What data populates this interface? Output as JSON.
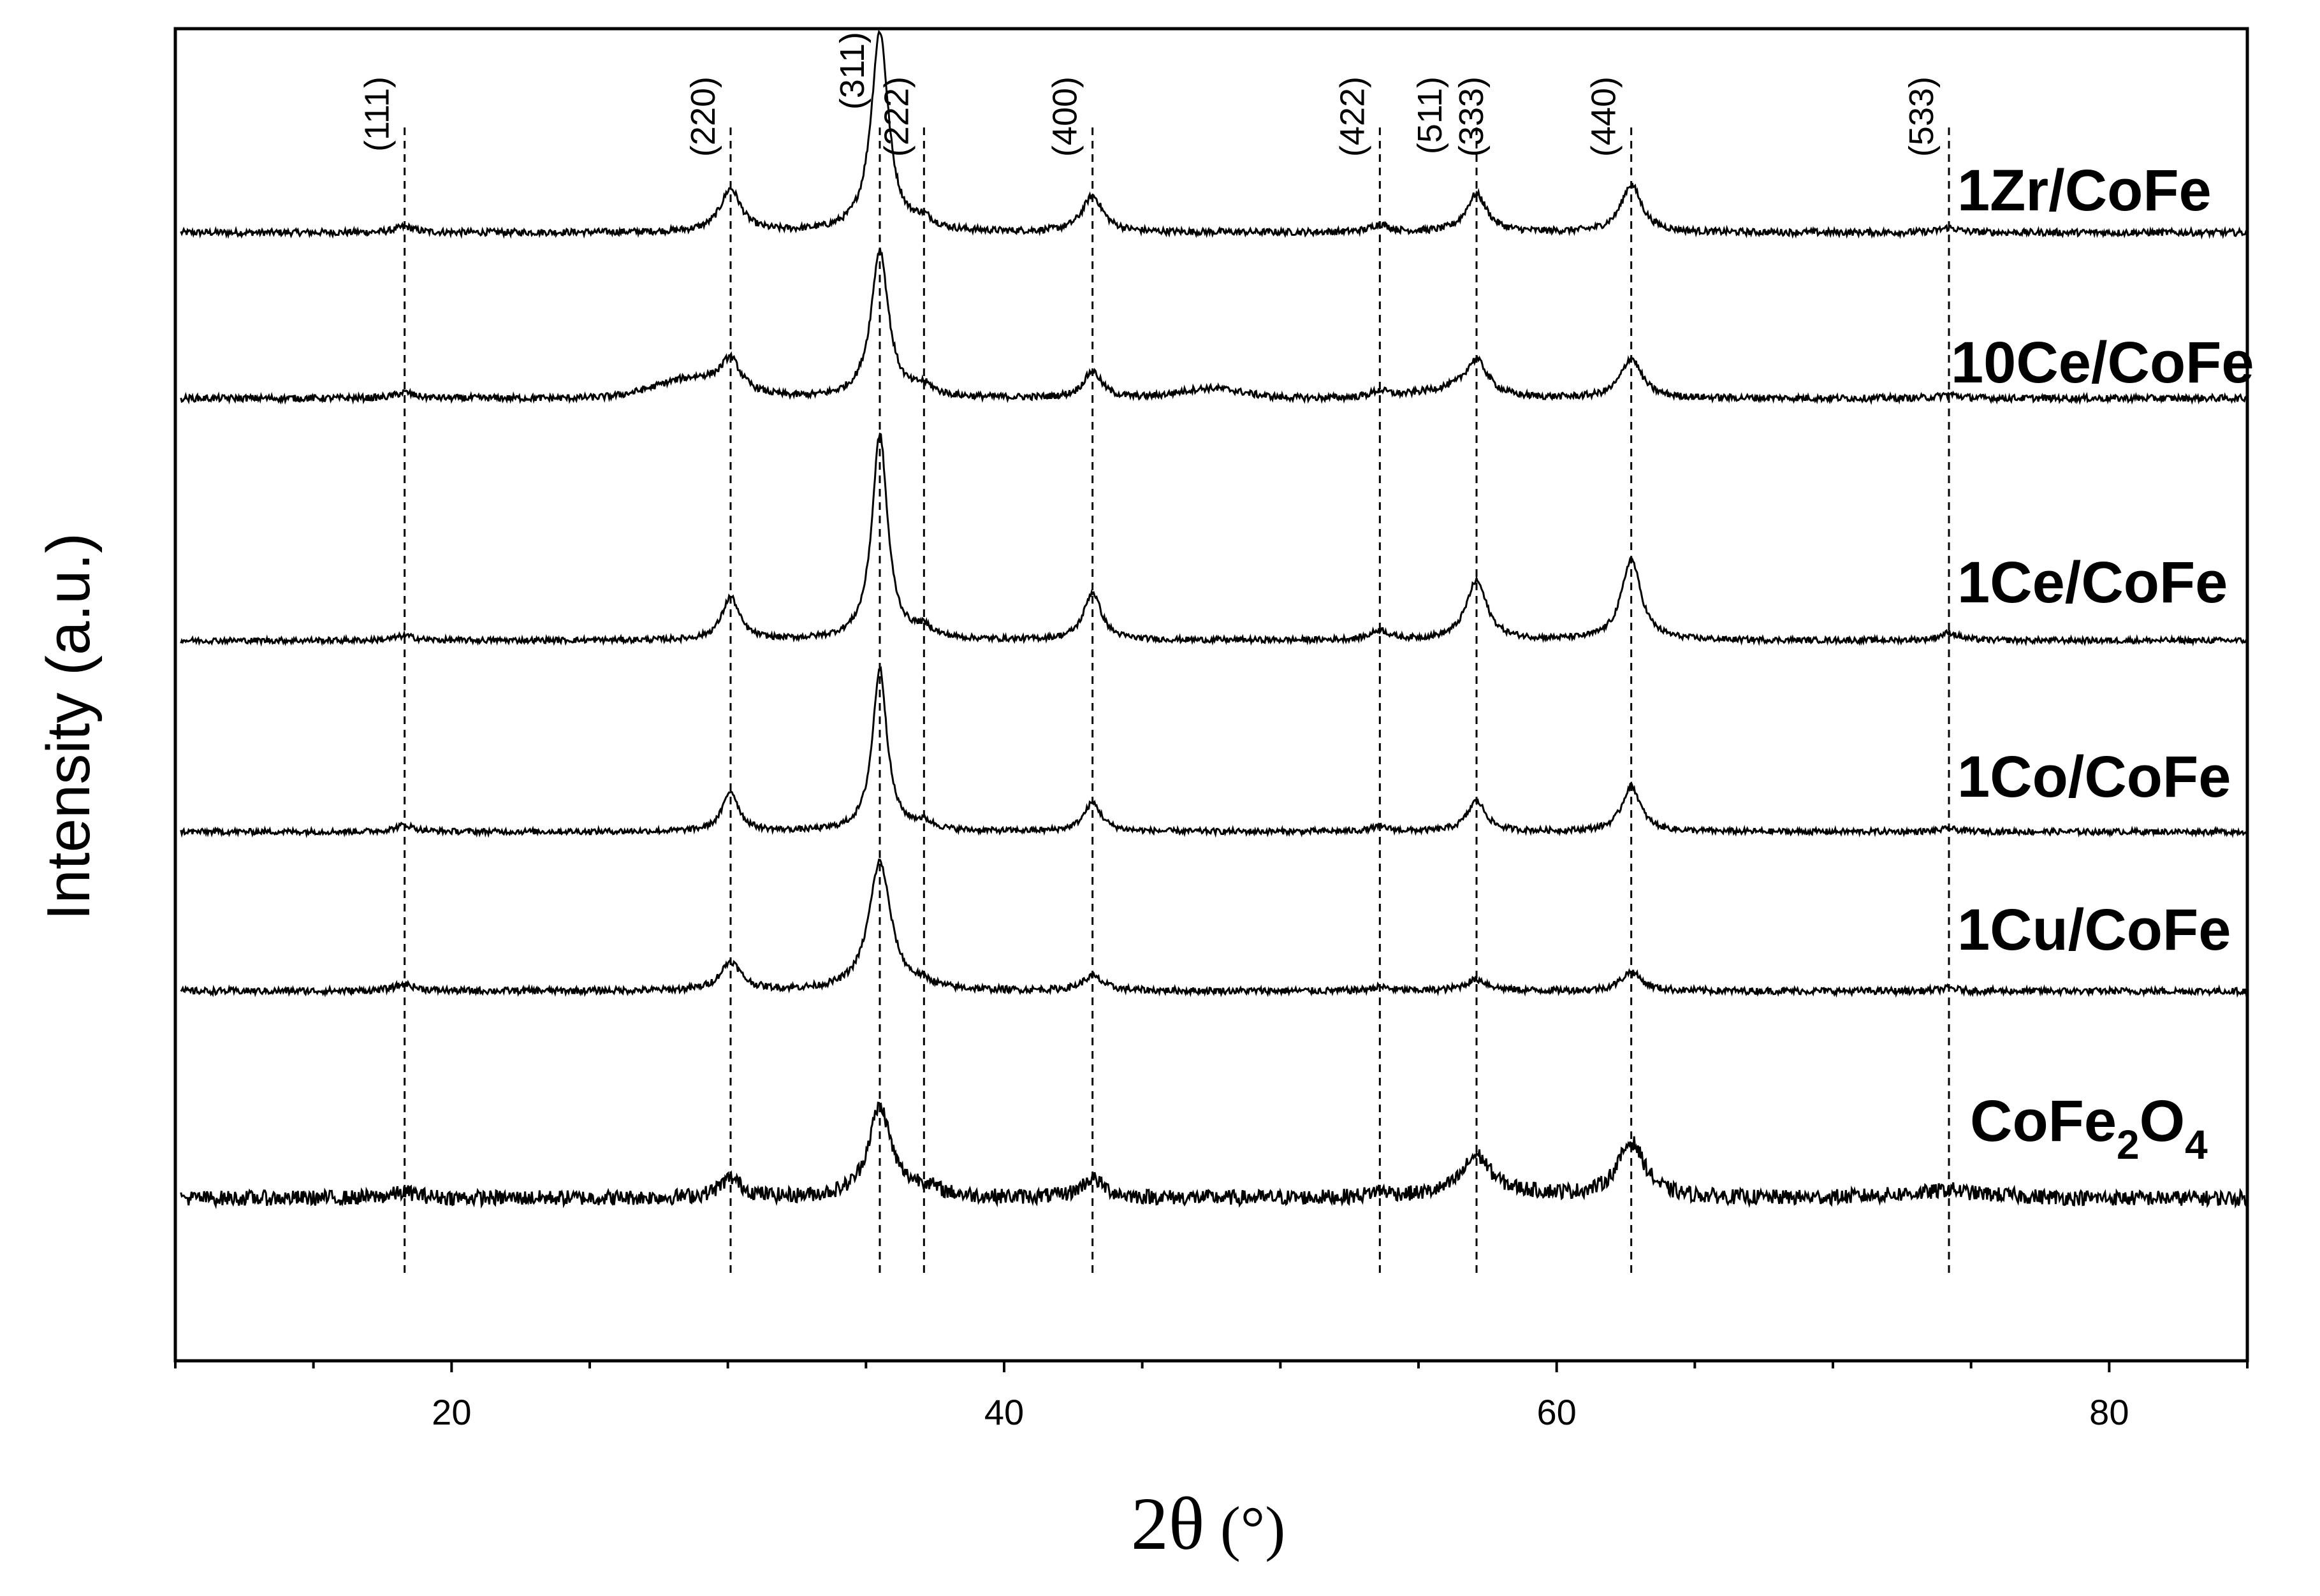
{
  "chart_data": {
    "type": "line",
    "title": "",
    "xlabel_main": "2θ",
    "xlabel_unit": "(°)",
    "ylabel": "Intensity (a.u.)",
    "xlim": [
      10,
      85
    ],
    "x_ticks": [
      20,
      40,
      60,
      80
    ],
    "x_tick_labels": [
      "20",
      "40",
      "60",
      "80"
    ],
    "y_ticks": "none",
    "grid": false,
    "legend": "none",
    "reflections": [
      {
        "label": "(111)",
        "x": 18.3
      },
      {
        "label": "(220)",
        "x": 30.1
      },
      {
        "label": "(311)",
        "x": 35.5
      },
      {
        "label": "(222)",
        "x": 37.1
      },
      {
        "label": "(400)",
        "x": 43.2
      },
      {
        "label": "(422)",
        "x": 53.6
      },
      {
        "label": "(511)",
        "x": 57.1
      },
      {
        "label": "(333)",
        "x": 57.1
      },
      {
        "label": "(440)",
        "x": 62.7
      },
      {
        "label": "(533)",
        "x": 74.2
      }
    ],
    "series": [
      {
        "name": "1Zr/CoFe",
        "label": "1Zr/CoFe",
        "baseline": 5.0,
        "noise": 0.035,
        "peaks": [
          [
            18.3,
            0.06,
            0.4
          ],
          [
            30.1,
            0.45,
            0.45
          ],
          [
            35.5,
            2.1,
            0.38
          ],
          [
            37.1,
            0.1,
            0.4
          ],
          [
            43.2,
            0.38,
            0.45
          ],
          [
            53.6,
            0.08,
            0.4
          ],
          [
            57.1,
            0.4,
            0.45
          ],
          [
            62.7,
            0.5,
            0.45
          ],
          [
            74.2,
            0.05,
            0.4
          ]
        ],
        "broad": []
      },
      {
        "name": "10Ce/CoFe",
        "label": "10Ce/CoFe",
        "baseline": 4.0,
        "noise": 0.035,
        "peaks": [
          [
            18.3,
            0.06,
            0.4
          ],
          [
            30.1,
            0.3,
            0.4
          ],
          [
            35.5,
            1.55,
            0.38
          ],
          [
            37.1,
            0.1,
            0.4
          ],
          [
            43.2,
            0.28,
            0.4
          ],
          [
            53.6,
            0.07,
            0.4
          ],
          [
            57.1,
            0.36,
            0.5
          ],
          [
            62.7,
            0.42,
            0.45
          ],
          [
            74.2,
            0.04,
            0.4
          ]
        ],
        "broad": [
          [
            28.8,
            0.2,
            2.0
          ],
          [
            47.5,
            0.1,
            1.6
          ],
          [
            56,
            0.07,
            1.6
          ]
        ]
      },
      {
        "name": "1Ce/CoFe",
        "label": "1Ce/CoFe",
        "baseline": 2.85,
        "noise": 0.03,
        "peaks": [
          [
            18.3,
            0.05,
            0.4
          ],
          [
            30.1,
            0.45,
            0.38
          ],
          [
            35.5,
            2.15,
            0.34
          ],
          [
            37.1,
            0.1,
            0.4
          ],
          [
            43.2,
            0.5,
            0.38
          ],
          [
            53.6,
            0.1,
            0.4
          ],
          [
            57.1,
            0.62,
            0.45
          ],
          [
            62.7,
            0.85,
            0.42
          ],
          [
            74.2,
            0.08,
            0.4
          ]
        ],
        "broad": []
      },
      {
        "name": "1Co/CoFe",
        "label": "1Co/CoFe",
        "baseline": 1.9,
        "noise": 0.03,
        "peaks": [
          [
            18.3,
            0.07,
            0.4
          ],
          [
            30.1,
            0.42,
            0.35
          ],
          [
            35.5,
            1.7,
            0.32
          ],
          [
            37.1,
            0.08,
            0.4
          ],
          [
            43.2,
            0.3,
            0.38
          ],
          [
            53.6,
            0.05,
            0.4
          ],
          [
            57.1,
            0.32,
            0.4
          ],
          [
            62.7,
            0.48,
            0.4
          ],
          [
            74.2,
            0.03,
            0.4
          ]
        ],
        "broad": []
      },
      {
        "name": "1Cu/CoFe",
        "label": "1Cu/CoFe",
        "baseline": 1.0,
        "noise": 0.035,
        "peaks": [
          [
            18.3,
            0.07,
            0.45
          ],
          [
            30.1,
            0.3,
            0.45
          ],
          [
            35.5,
            1.35,
            0.48
          ],
          [
            37.1,
            0.05,
            0.4
          ],
          [
            43.2,
            0.15,
            0.45
          ],
          [
            53.6,
            0.04,
            0.4
          ],
          [
            57.1,
            0.12,
            0.5
          ],
          [
            62.7,
            0.2,
            0.45
          ],
          [
            74.2,
            0.03,
            0.4
          ]
        ],
        "broad": []
      },
      {
        "name": "CoFe2O4",
        "label_main": "CoFe",
        "label_sub1": "2",
        "label_mid": "O",
        "label_sub2": "4",
        "baseline": 0.0,
        "noise": 0.08,
        "peaks": [
          [
            18.3,
            0.06,
            0.6
          ],
          [
            30.1,
            0.2,
            0.5
          ],
          [
            35.5,
            0.95,
            0.5
          ],
          [
            37.1,
            0.1,
            0.6
          ],
          [
            43.2,
            0.2,
            0.5
          ],
          [
            53.6,
            0.06,
            0.5
          ],
          [
            57.1,
            0.4,
            0.6
          ],
          [
            62.7,
            0.58,
            0.6
          ],
          [
            74.2,
            0.04,
            0.5
          ]
        ],
        "broad": [
          [
            58,
            0.05,
            3
          ],
          [
            74,
            0.05,
            3
          ]
        ]
      }
    ]
  }
}
